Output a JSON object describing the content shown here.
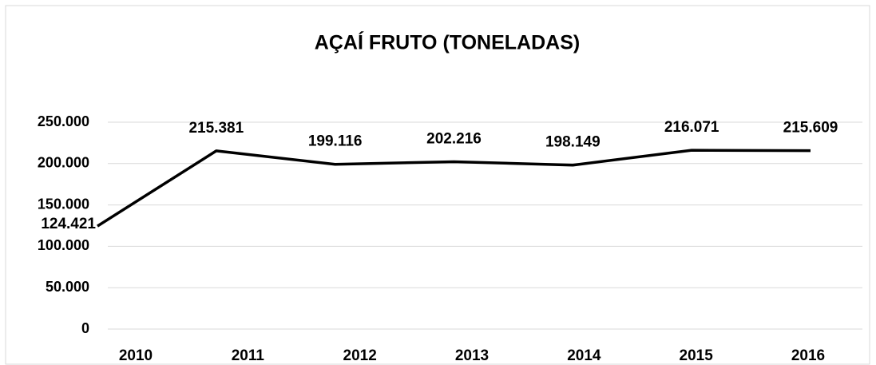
{
  "chart_data": {
    "type": "line",
    "title": "AÇAÍ FRUTO (TONELADAS)",
    "categories": [
      "2010",
      "2011",
      "2012",
      "2013",
      "2014",
      "2015",
      "2016"
    ],
    "series": [
      {
        "name": "Açaí fruto",
        "color": "#000000",
        "values": [
          124421,
          215381,
          199116,
          202216,
          198149,
          216071,
          215609
        ],
        "value_labels": [
          "124.421",
          "215.381",
          "199.116",
          "202.216",
          "198.149",
          "216.071",
          "215.609"
        ]
      }
    ],
    "ylim": [
      0,
      250000
    ],
    "yticks": [
      0,
      {
        "value": 50000,
        "label": "50.000"
      },
      {
        "value": 100000,
        "label": "100.000"
      },
      {
        "value": 150000,
        "label": "150.000"
      },
      {
        "value": 200000,
        "label": "200.000"
      },
      {
        "value": 250000,
        "label": "250.000"
      }
    ],
    "grid": true
  }
}
